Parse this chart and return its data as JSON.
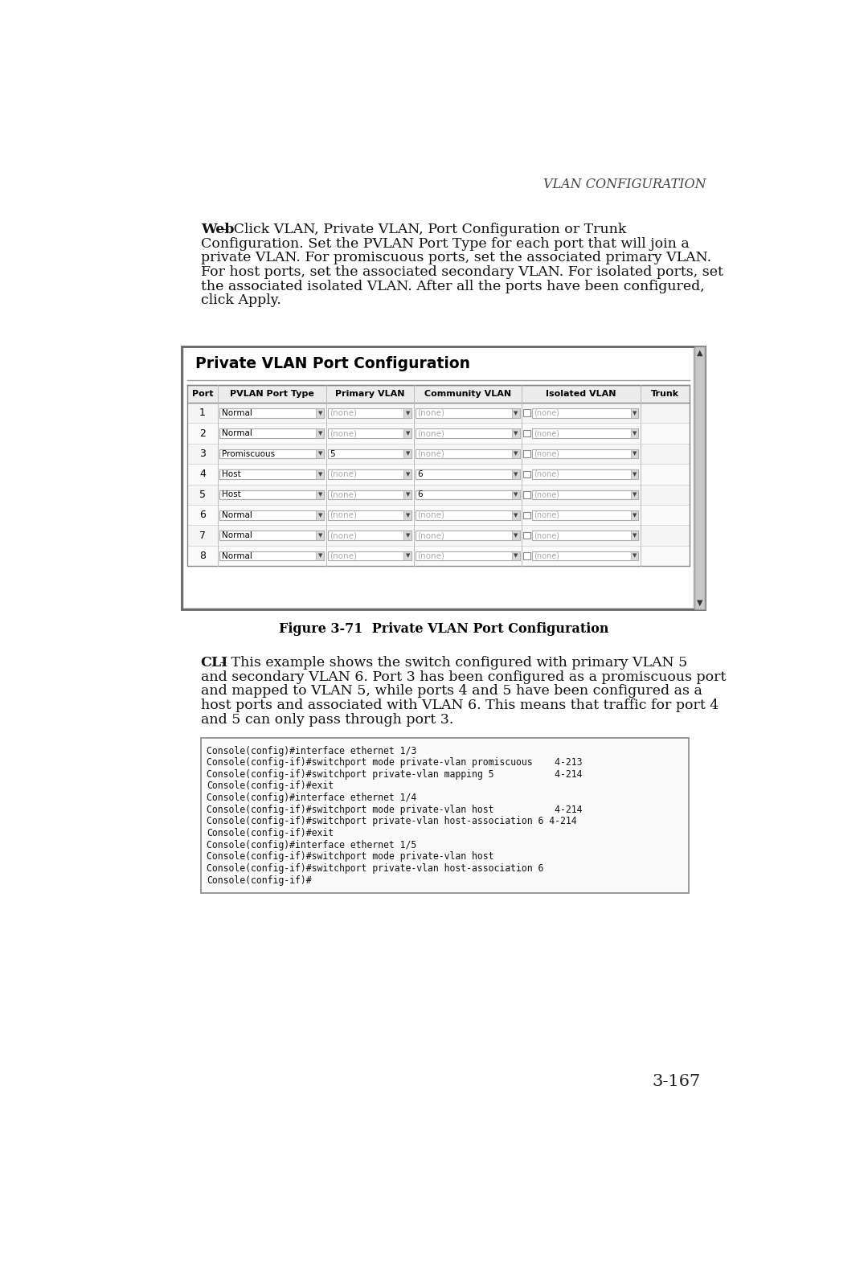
{
  "page_title_italic": "VLAN",
  "page_title_smallcaps": "Configuration",
  "page_number": "3-167",
  "web_lines": [
    {
      "bold": "Web",
      "rest": " – Click VLAN, Private VLAN, Port Configuration or Trunk"
    },
    {
      "bold": "",
      "rest": "Configuration. Set the PVLAN Port Type for each port that will join a"
    },
    {
      "bold": "",
      "rest": "private VLAN. For promiscuous ports, set the associated primary VLAN."
    },
    {
      "bold": "",
      "rest": "For host ports, set the associated secondary VLAN. For isolated ports, set"
    },
    {
      "bold": "",
      "rest": "the associated isolated VLAN. After all the ports have been configured,"
    },
    {
      "bold": "",
      "rest": "click Apply."
    }
  ],
  "figure_title": "Figure 3-71  Private VLAN Port Configuration",
  "table_title": "Private VLAN Port Configuration",
  "table_headers": [
    "Port",
    "PVLAN Port Type",
    "Primary VLAN",
    "Community VLAN",
    "Isolated VLAN",
    "Trunk"
  ],
  "col_widths_rel": [
    30,
    105,
    85,
    105,
    115,
    48
  ],
  "table_rows": [
    {
      "port": "1",
      "pvlan_type": "Normal",
      "primary": "(none)",
      "community": "(none)",
      "isolated": "(none)"
    },
    {
      "port": "2",
      "pvlan_type": "Normal",
      "primary": "(none)",
      "community": "(none)",
      "isolated": "(none)"
    },
    {
      "port": "3",
      "pvlan_type": "Promiscuous",
      "primary": "5",
      "community": "(none)",
      "isolated": "(none)"
    },
    {
      "port": "4",
      "pvlan_type": "Host",
      "primary": "(none)",
      "community": "6",
      "isolated": "(none)"
    },
    {
      "port": "5",
      "pvlan_type": "Host",
      "primary": "(none)",
      "community": "6",
      "isolated": "(none)"
    },
    {
      "port": "6",
      "pvlan_type": "Normal",
      "primary": "(none)",
      "community": "(none)",
      "isolated": "(none)"
    },
    {
      "port": "7",
      "pvlan_type": "Normal",
      "primary": "(none)",
      "community": "(none)",
      "isolated": "(none)"
    },
    {
      "port": "8",
      "pvlan_type": "Normal",
      "primary": "(none)",
      "community": "(none)",
      "isolated": "(none)"
    }
  ],
  "cli_lines_para": [
    {
      "bold": "CLI",
      "rest": " – This example shows the switch configured with primary VLAN 5"
    },
    {
      "bold": "",
      "rest": "and secondary VLAN 6. Port 3 has been configured as a promiscuous port"
    },
    {
      "bold": "",
      "rest": "and mapped to VLAN 5, while ports 4 and 5 have been configured as a"
    },
    {
      "bold": "",
      "rest": "host ports and associated with VLAN 6. This means that traffic for port 4"
    },
    {
      "bold": "",
      "rest": "and 5 can only pass through port 3."
    }
  ],
  "cli_code_lines": [
    "Console(config)#interface ethernet 1/3",
    "Console(config-if)#switchport mode private-vlan promiscuous    4-213",
    "Console(config-if)#switchport private-vlan mapping 5           4-214",
    "Console(config-if)#exit",
    "Console(config)#interface ethernet 1/4",
    "Console(config-if)#switchport mode private-vlan host           4-214",
    "Console(config-if)#switchport private-vlan host-association 6 4-214",
    "Console(config-if)#exit",
    "Console(config)#interface ethernet 1/5",
    "Console(config-if)#switchport mode private-vlan host",
    "Console(config-if)#switchport private-vlan host-association 6",
    "Console(config-if)#"
  ],
  "bg_color": "#ffffff"
}
